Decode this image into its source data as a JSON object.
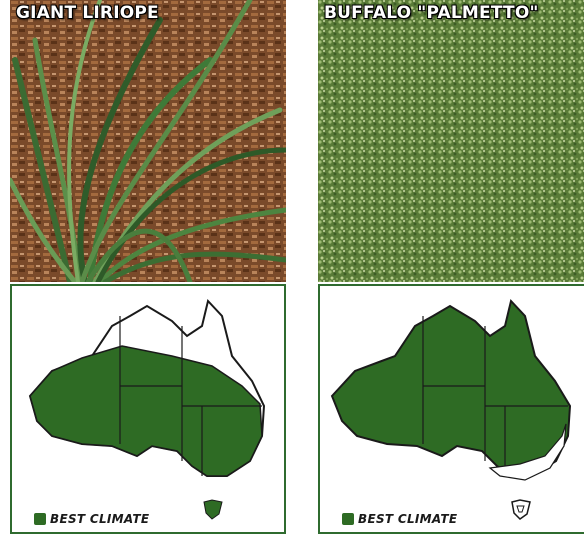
{
  "panels": [
    {
      "caption": "GIANT LIRIOPE",
      "legend_label": "BEST CLIMATE"
    },
    {
      "caption": "BUFFALO \"PALMETTO\"",
      "legend_label": "BEST CLIMATE"
    }
  ],
  "colors": {
    "climate_fill": "#2e6b24",
    "border": "#2f6b2f"
  }
}
